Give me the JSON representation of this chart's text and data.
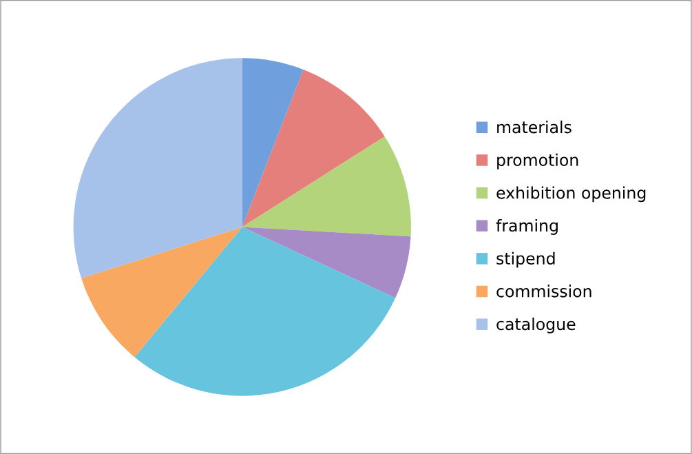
{
  "chart_data": {
    "type": "pie",
    "categories": [
      "materials",
      "promotion",
      "exhibition opening",
      "framing",
      "stipend",
      "commission",
      "catalogue"
    ],
    "values": [
      5.9,
      10.1,
      9.9,
      6.0,
      29.1,
      9.1,
      29.9
    ],
    "colors": [
      "#6f9fdc",
      "#e57f7c",
      "#b3d47a",
      "#a68bc6",
      "#67c4df",
      "#f8a860",
      "#a7c2ea"
    ],
    "legend": "right"
  }
}
